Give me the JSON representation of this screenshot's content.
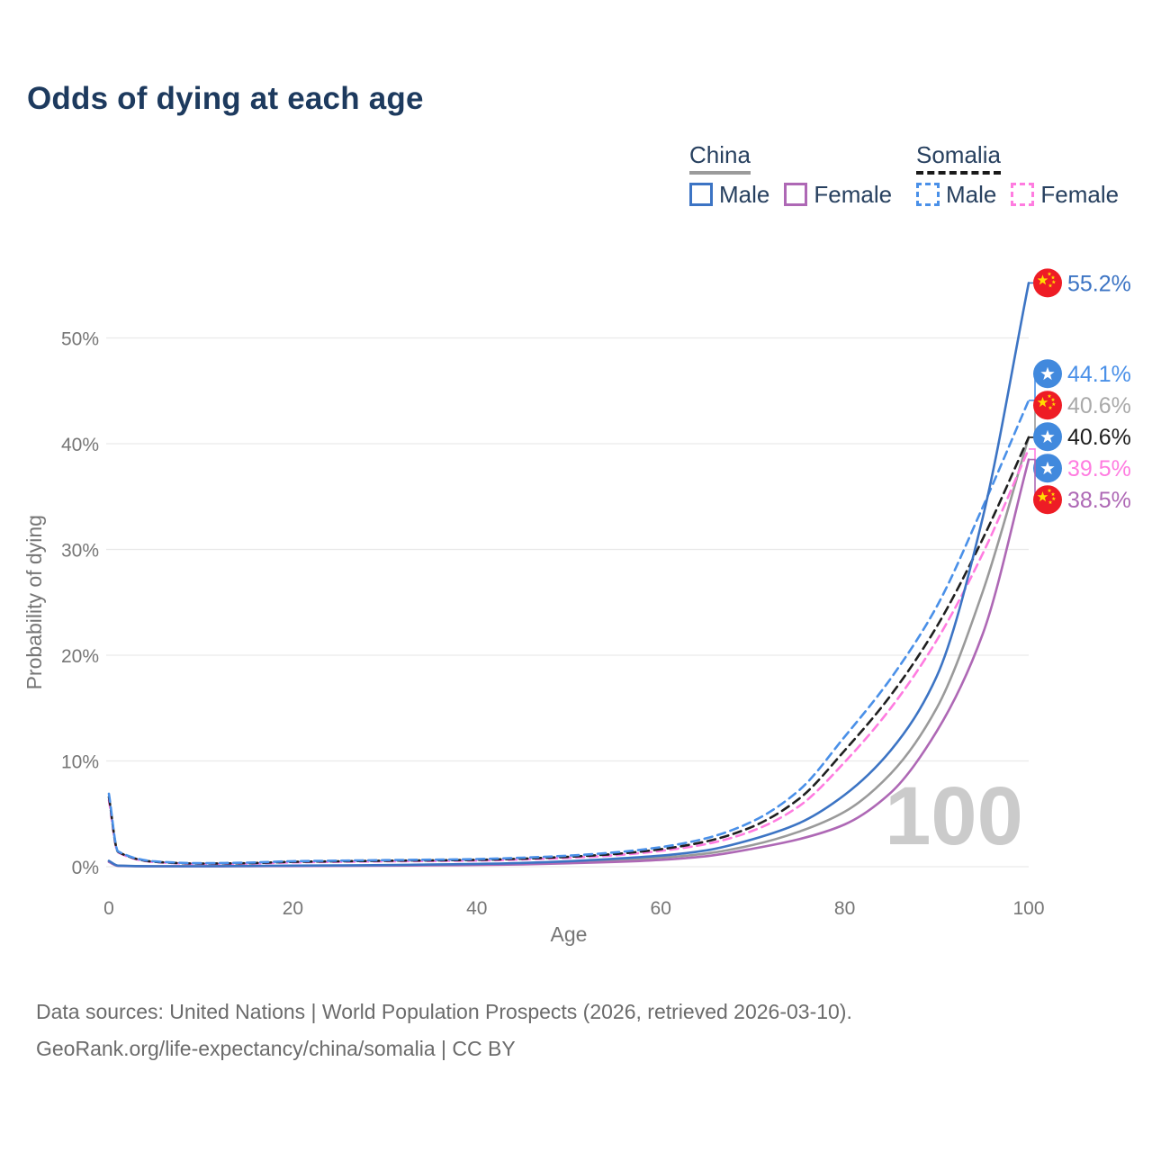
{
  "title": "Odds of dying at each age",
  "legend": {
    "groups": [
      {
        "name": "China",
        "line_style": "solid",
        "line_color": "#9b9b9b",
        "items": [
          {
            "label": "Male",
            "swatch_color": "#3c74c4",
            "swatch_style": "solid"
          },
          {
            "label": "Female",
            "swatch_color": "#ae68b5",
            "swatch_style": "solid"
          }
        ]
      },
      {
        "name": "Somalia",
        "line_style": "dashed",
        "line_color": "#1a1a1a",
        "items": [
          {
            "label": "Male",
            "swatch_color": "#4a90e8",
            "swatch_style": "dashed"
          },
          {
            "label": "Female",
            "swatch_color": "#ff7ce0",
            "swatch_style": "dashed"
          }
        ]
      }
    ]
  },
  "chart_data": {
    "type": "line",
    "title": "Odds of dying at each age",
    "xlabel": "Age",
    "ylabel": "Probability of dying",
    "x_ticks": [
      0,
      20,
      40,
      60,
      80,
      100
    ],
    "y_tick_labels": [
      "0%",
      "10%",
      "20%",
      "30%",
      "40%",
      "50%"
    ],
    "y_tick_values": [
      0,
      10,
      20,
      30,
      40,
      50
    ],
    "xlim": [
      0,
      100
    ],
    "ylim_percent": [
      0,
      57
    ],
    "grid": "horizontal",
    "legend_position": "top-right",
    "watermark": "100",
    "ages": [
      0,
      1,
      5,
      10,
      15,
      20,
      25,
      30,
      35,
      40,
      45,
      50,
      55,
      60,
      65,
      70,
      75,
      80,
      85,
      90,
      95,
      100
    ],
    "series": [
      {
        "id": "china-total",
        "country": "China",
        "group": "Total",
        "color": "#9a9a9a",
        "label_color": "#a9a9a9",
        "dash": false,
        "flag": "china",
        "end_label": "40.6%",
        "values": [
          0.5,
          0.09,
          0.04,
          0.04,
          0.06,
          0.08,
          0.1,
          0.12,
          0.16,
          0.21,
          0.29,
          0.42,
          0.6,
          0.85,
          1.25,
          2.05,
          3.3,
          5.2,
          8.8,
          15.0,
          26.0,
          40.6
        ]
      },
      {
        "id": "china-female",
        "country": "China",
        "group": "Female",
        "color": "#ae68b5",
        "dash": false,
        "flag": "china",
        "end_label": "38.5%",
        "values": [
          0.45,
          0.08,
          0.03,
          0.03,
          0.05,
          0.06,
          0.08,
          0.1,
          0.13,
          0.16,
          0.22,
          0.32,
          0.45,
          0.65,
          1.0,
          1.7,
          2.6,
          4.0,
          7.0,
          12.8,
          22.0,
          38.5
        ]
      },
      {
        "id": "somalia-female",
        "country": "Somalia",
        "group": "Female",
        "color": "#ff7ce0",
        "dash": true,
        "flag": "somalia",
        "end_label": "39.5%",
        "values": [
          6.3,
          1.35,
          0.43,
          0.27,
          0.29,
          0.41,
          0.46,
          0.51,
          0.54,
          0.58,
          0.68,
          0.84,
          1.08,
          1.5,
          2.15,
          3.4,
          5.7,
          9.9,
          15.0,
          21.4,
          29.6,
          39.5
        ]
      },
      {
        "id": "somalia-total",
        "country": "Somalia",
        "group": "Total",
        "color": "#1f1f1f",
        "dash": true,
        "flag": "somalia",
        "end_label": "40.6%",
        "values": [
          6.6,
          1.4,
          0.46,
          0.3,
          0.33,
          0.46,
          0.51,
          0.56,
          0.6,
          0.65,
          0.76,
          0.94,
          1.2,
          1.65,
          2.4,
          3.8,
          6.4,
          11.0,
          16.2,
          22.7,
          31.0,
          40.6
        ]
      },
      {
        "id": "somalia-male",
        "country": "Somalia",
        "group": "Male",
        "color": "#4a90e8",
        "dash": true,
        "flag": "somalia",
        "end_label": "44.1%",
        "values": [
          6.9,
          1.45,
          0.5,
          0.33,
          0.38,
          0.52,
          0.57,
          0.62,
          0.66,
          0.72,
          0.85,
          1.05,
          1.35,
          1.85,
          2.7,
          4.3,
          7.2,
          12.3,
          17.8,
          24.6,
          34.0,
          44.1
        ]
      },
      {
        "id": "china-male",
        "country": "China",
        "group": "Male",
        "color": "#3c74c4",
        "dash": false,
        "flag": "china",
        "end_label": "55.2%",
        "values": [
          0.55,
          0.1,
          0.04,
          0.04,
          0.07,
          0.1,
          0.12,
          0.15,
          0.2,
          0.26,
          0.36,
          0.52,
          0.75,
          1.05,
          1.55,
          2.6,
          4.1,
          6.8,
          11.0,
          18.0,
          33.0,
          55.2
        ]
      }
    ],
    "flag_colors": {
      "china_red": "#ee1c25",
      "china_star_yellow": "#ffde00",
      "somalia_blue": "#4189dd",
      "somalia_star_white": "#ffffff"
    }
  },
  "footer": {
    "line1": "Data sources: United Nations | World Population Prospects (2026, retrieved 2026-03-10).",
    "line2": "GeoRank.org/life-expectancy/china/somalia | CC BY"
  }
}
